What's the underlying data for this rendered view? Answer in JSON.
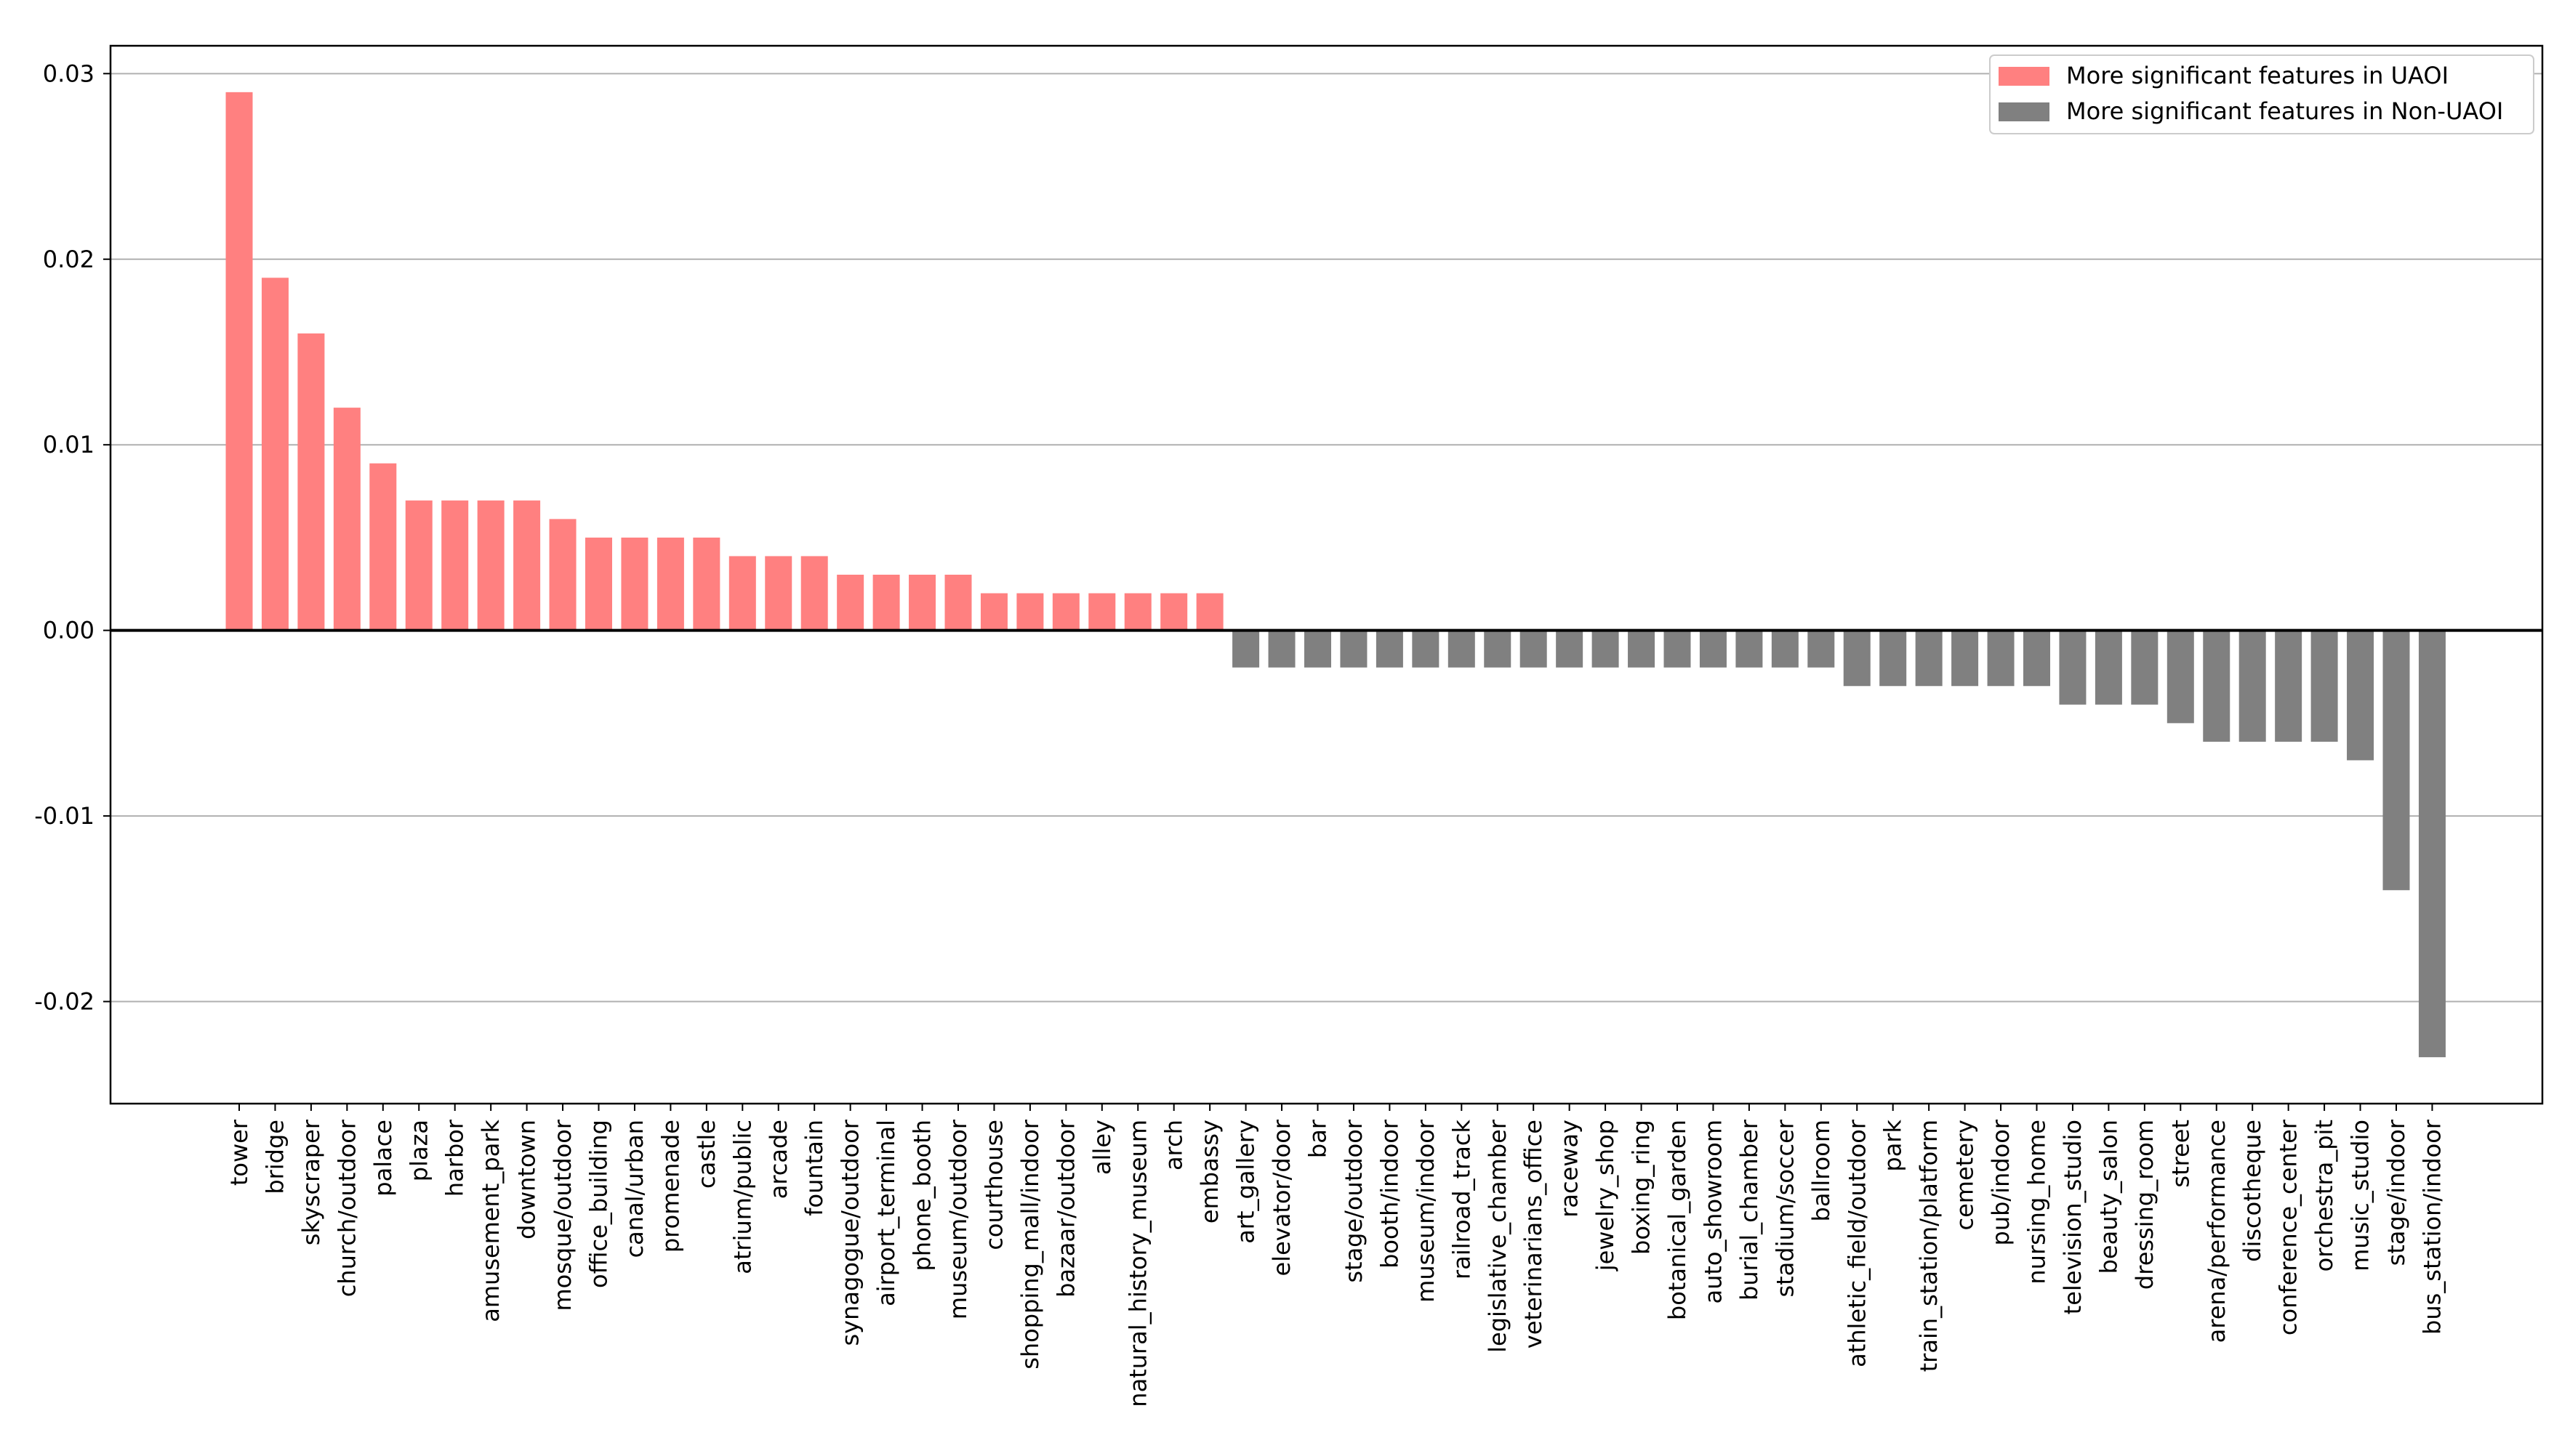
{
  "chart_data": {
    "type": "bar",
    "title": "",
    "xlabel": "",
    "ylabel": "",
    "ylim": [
      -0.0255,
      0.0315
    ],
    "yticks": [
      {
        "value": 0.03,
        "label": "0.03"
      },
      {
        "value": 0.02,
        "label": "0.02"
      },
      {
        "value": 0.01,
        "label": "0.01"
      },
      {
        "value": 0.0,
        "label": "0.00"
      },
      {
        "value": -0.01,
        "label": "-0.01"
      },
      {
        "value": -0.02,
        "label": "-0.02"
      }
    ],
    "grid": "horizontal",
    "legend_position": "top-right",
    "series": [
      {
        "name": "More significant features in UAOI",
        "color": "#ff8080",
        "categories": [
          "tower",
          "bridge",
          "skyscraper",
          "church/outdoor",
          "palace",
          "plaza",
          "harbor",
          "amusement_park",
          "downtown",
          "mosque/outdoor",
          "office_building",
          "canal/urban",
          "promenade",
          "castle",
          "atrium/public",
          "arcade",
          "fountain",
          "synagogue/outdoor",
          "airport_terminal",
          "phone_booth",
          "museum/outdoor",
          "courthouse",
          "shopping_mall/indoor",
          "bazaar/outdoor",
          "alley",
          "natural_history_museum",
          "arch",
          "embassy"
        ],
        "values": [
          0.029,
          0.019,
          0.016,
          0.012,
          0.009,
          0.007,
          0.007,
          0.007,
          0.007,
          0.006,
          0.005,
          0.005,
          0.005,
          0.005,
          0.004,
          0.004,
          0.004,
          0.003,
          0.003,
          0.003,
          0.003,
          0.002,
          0.002,
          0.002,
          0.002,
          0.002,
          0.002,
          0.002
        ]
      },
      {
        "name": "More significant features in Non-UAOI",
        "color": "#808080",
        "categories": [
          "art_gallery",
          "elevator/door",
          "bar",
          "stage/outdoor",
          "booth/indoor",
          "museum/indoor",
          "railroad_track",
          "legislative_chamber",
          "veterinarians_office",
          "raceway",
          "jewelry_shop",
          "boxing_ring",
          "botanical_garden",
          "auto_showroom",
          "burial_chamber",
          "stadium/soccer",
          "ballroom",
          "athletic_field/outdoor",
          "park",
          "train_station/platform",
          "cemetery",
          "pub/indoor",
          "nursing_home",
          "television_studio",
          "beauty_salon",
          "dressing_room",
          "street",
          "arena/performance",
          "discotheque",
          "conference_center",
          "orchestra_pit",
          "music_studio",
          "stage/indoor",
          "bus_station/indoor"
        ],
        "values": [
          -0.002,
          -0.002,
          -0.002,
          -0.002,
          -0.002,
          -0.002,
          -0.002,
          -0.002,
          -0.002,
          -0.002,
          -0.002,
          -0.002,
          -0.002,
          -0.002,
          -0.002,
          -0.002,
          -0.002,
          -0.003,
          -0.003,
          -0.003,
          -0.003,
          -0.003,
          -0.003,
          -0.004,
          -0.004,
          -0.004,
          -0.005,
          -0.006,
          -0.006,
          -0.006,
          -0.006,
          -0.007,
          -0.014,
          -0.023
        ]
      }
    ]
  }
}
